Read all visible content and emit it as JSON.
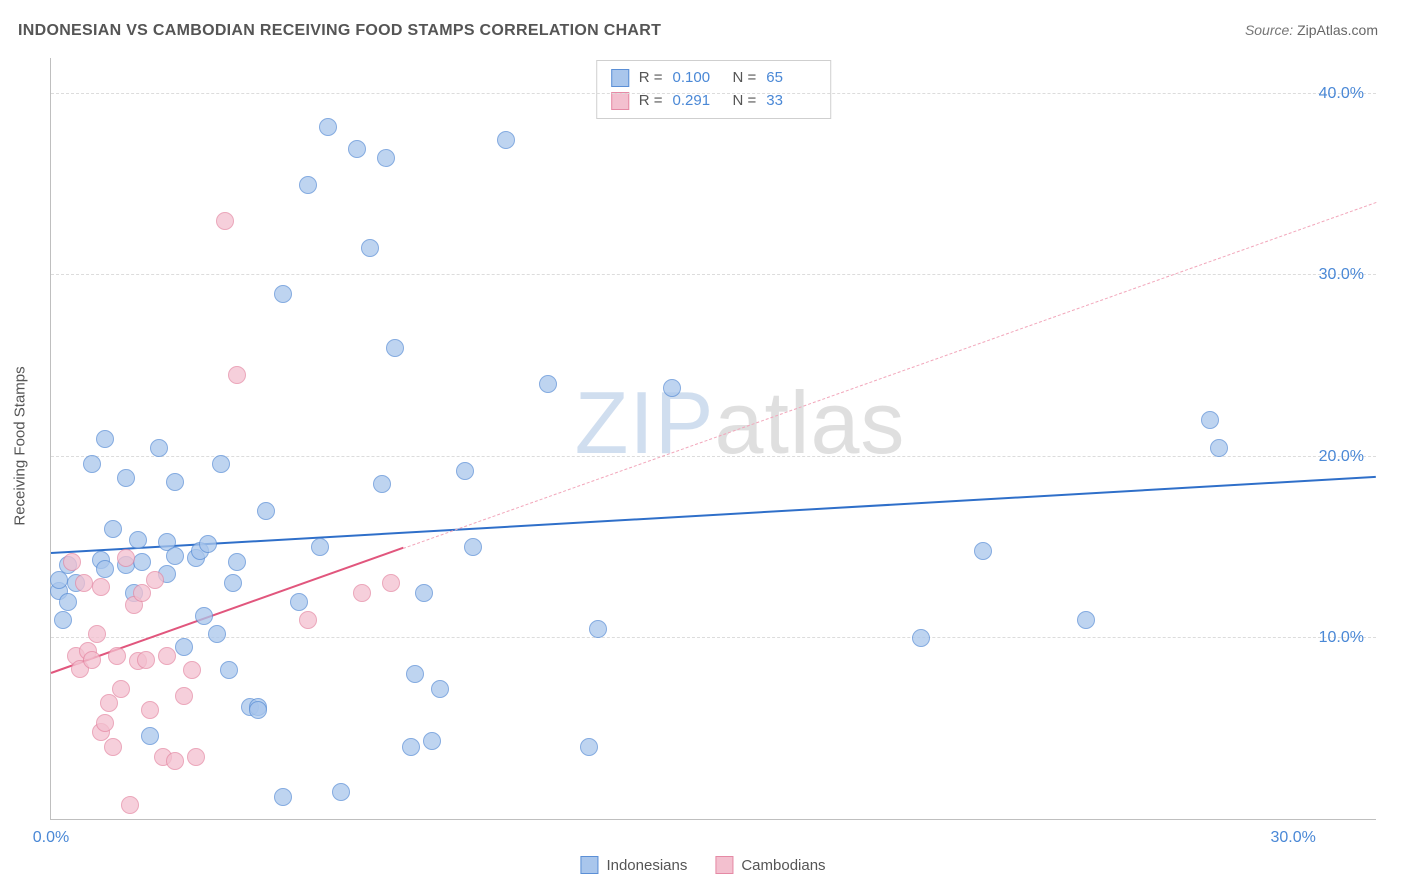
{
  "title": "INDONESIAN VS CAMBODIAN RECEIVING FOOD STAMPS CORRELATION CHART",
  "source_label": "Source:",
  "source_value": "ZipAtlas.com",
  "ylabel": "Receiving Food Stamps",
  "watermark": {
    "part_a": "ZIP",
    "part_b": "atlas"
  },
  "chart": {
    "type": "scatter",
    "background_color": "#ffffff",
    "grid_color": "#dcdcdc",
    "axis_color": "#bfbfbf",
    "tick_label_color": "#4a88d6",
    "title_color": "#555555",
    "title_fontsize": 16,
    "tick_fontsize": 16,
    "label_fontsize": 15,
    "xlim": [
      0,
      32
    ],
    "ylim": [
      0,
      42
    ],
    "yticks": [
      10,
      20,
      30,
      40
    ],
    "ytick_labels": [
      "10.0%",
      "20.0%",
      "30.0%",
      "40.0%"
    ],
    "xticks": [
      0,
      30
    ],
    "xtick_labels": [
      "0.0%",
      "30.0%"
    ],
    "marker_radius": 9,
    "marker_stroke_width": 1.5,
    "marker_fill_opacity": 0.35,
    "series": [
      {
        "key": "indonesians",
        "label": "Indonesians",
        "stroke": "#5b8fd6",
        "fill": "#a9c6ec",
        "R": "0.100",
        "N": "65",
        "trend": {
          "x1": 0,
          "y1": 14.6,
          "x2": 32,
          "y2": 18.8,
          "solid_until_x": 32,
          "color": "#2f6fc9",
          "dash_color": "#2f6fc9"
        },
        "points": [
          [
            0.2,
            12.6
          ],
          [
            0.2,
            13.2
          ],
          [
            0.3,
            11.0
          ],
          [
            0.4,
            14.0
          ],
          [
            0.4,
            12.0
          ],
          [
            0.6,
            13.0
          ],
          [
            1.0,
            19.6
          ],
          [
            1.2,
            14.3
          ],
          [
            1.3,
            21.0
          ],
          [
            1.3,
            13.8
          ],
          [
            1.5,
            16.0
          ],
          [
            1.8,
            14.0
          ],
          [
            1.8,
            18.8
          ],
          [
            2.1,
            15.4
          ],
          [
            2.2,
            14.2
          ],
          [
            2.4,
            4.6
          ],
          [
            2.6,
            20.5
          ],
          [
            2.8,
            13.5
          ],
          [
            2.8,
            15.3
          ],
          [
            3.0,
            14.5
          ],
          [
            3.0,
            18.6
          ],
          [
            3.2,
            9.5
          ],
          [
            3.5,
            14.4
          ],
          [
            3.6,
            14.8
          ],
          [
            3.8,
            15.2
          ],
          [
            4.1,
            19.6
          ],
          [
            4.3,
            8.2
          ],
          [
            4.5,
            14.2
          ],
          [
            4.8,
            6.2
          ],
          [
            5.0,
            6.2
          ],
          [
            5.0,
            6.0
          ],
          [
            5.2,
            17.0
          ],
          [
            5.6,
            29.0
          ],
          [
            5.6,
            1.2
          ],
          [
            6.2,
            35.0
          ],
          [
            6.5,
            15.0
          ],
          [
            6.7,
            38.2
          ],
          [
            7.0,
            1.5
          ],
          [
            7.4,
            37.0
          ],
          [
            7.7,
            31.5
          ],
          [
            8.0,
            18.5
          ],
          [
            8.1,
            36.5
          ],
          [
            8.3,
            26.0
          ],
          [
            8.7,
            4.0
          ],
          [
            8.8,
            8.0
          ],
          [
            9.0,
            12.5
          ],
          [
            9.2,
            4.3
          ],
          [
            9.4,
            7.2
          ],
          [
            10.0,
            19.2
          ],
          [
            10.2,
            15.0
          ],
          [
            11.0,
            37.5
          ],
          [
            12.0,
            24.0
          ],
          [
            13.0,
            4.0
          ],
          [
            13.2,
            10.5
          ],
          [
            15.0,
            23.8
          ],
          [
            21.0,
            10.0
          ],
          [
            22.5,
            14.8
          ],
          [
            25.0,
            11.0
          ],
          [
            28.0,
            22.0
          ],
          [
            28.2,
            20.5
          ],
          [
            2.0,
            12.5
          ],
          [
            3.7,
            11.2
          ],
          [
            4.0,
            10.2
          ],
          [
            4.4,
            13.0
          ],
          [
            6.0,
            12.0
          ]
        ]
      },
      {
        "key": "cambodians",
        "label": "Cambodians",
        "stroke": "#e58aa5",
        "fill": "#f3c0cf",
        "R": "0.291",
        "N": "33",
        "trend": {
          "x1": 0,
          "y1": 8.0,
          "x2": 32,
          "y2": 34.0,
          "solid_until_x": 8.5,
          "color": "#e1567d",
          "dash_color": "#f2a7bb"
        },
        "points": [
          [
            0.5,
            14.2
          ],
          [
            0.6,
            9.0
          ],
          [
            0.7,
            8.3
          ],
          [
            0.8,
            13.0
          ],
          [
            0.9,
            9.3
          ],
          [
            1.0,
            8.8
          ],
          [
            1.1,
            10.2
          ],
          [
            1.2,
            12.8
          ],
          [
            1.2,
            4.8
          ],
          [
            1.3,
            5.3
          ],
          [
            1.4,
            6.4
          ],
          [
            1.5,
            4.0
          ],
          [
            1.6,
            9.0
          ],
          [
            1.7,
            7.2
          ],
          [
            1.8,
            14.4
          ],
          [
            1.9,
            0.8
          ],
          [
            2.0,
            11.8
          ],
          [
            2.1,
            8.7
          ],
          [
            2.2,
            12.5
          ],
          [
            2.3,
            8.8
          ],
          [
            2.4,
            6.0
          ],
          [
            2.5,
            13.2
          ],
          [
            2.7,
            3.4
          ],
          [
            2.8,
            9.0
          ],
          [
            3.0,
            3.2
          ],
          [
            3.2,
            6.8
          ],
          [
            3.4,
            8.2
          ],
          [
            3.5,
            3.4
          ],
          [
            4.2,
            33.0
          ],
          [
            4.5,
            24.5
          ],
          [
            6.2,
            11.0
          ],
          [
            7.5,
            12.5
          ],
          [
            8.2,
            13.0
          ]
        ]
      }
    ],
    "legend_stats": {
      "R_label": "R =",
      "N_label": "N ="
    }
  }
}
